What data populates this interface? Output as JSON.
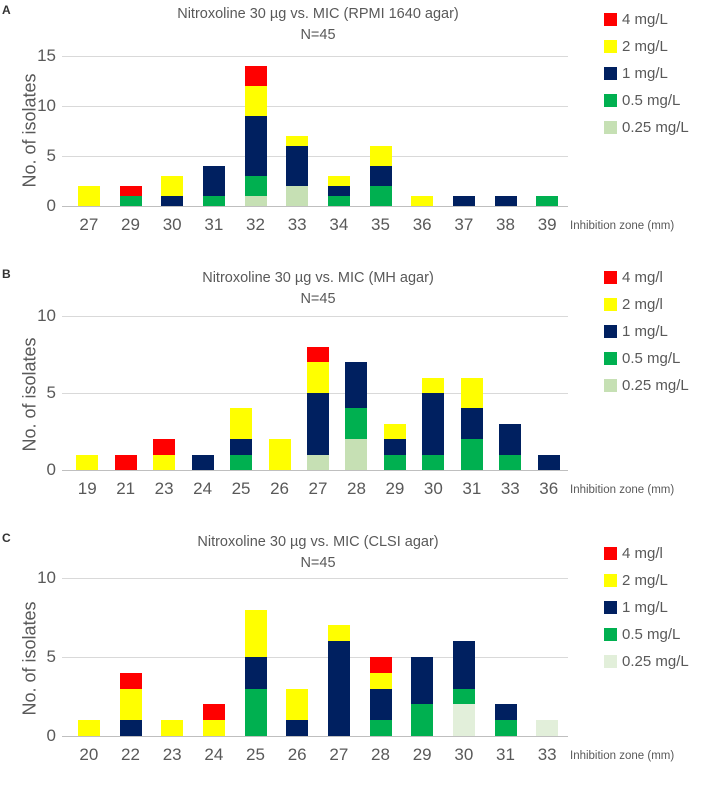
{
  "figure": {
    "text_color": "#595959",
    "grid_color": "#d9d9d9",
    "axis_color": "#bfbfbf"
  },
  "chart_data": [
    {
      "type": "bar",
      "stacked": true,
      "panel_label": "A",
      "title": "Nitroxoline 30 µg vs. MIC (RPMI 1640 agar)",
      "subtitle": "N=45",
      "ylabel": "No. of isolates",
      "xlabel": "Inhibition zone (mm)",
      "ylim": [
        0,
        15
      ],
      "yticks": [
        0,
        5,
        10,
        15
      ],
      "grid": true,
      "legend_position": "right",
      "categories": [
        "27",
        "29",
        "30",
        "31",
        "32",
        "33",
        "34",
        "35",
        "36",
        "37",
        "38",
        "39"
      ],
      "series": [
        {
          "name": "4 mg/L",
          "color": "#FF0000",
          "values": [
            0,
            1,
            0,
            0,
            2,
            0,
            0,
            0,
            0,
            0,
            0,
            0
          ]
        },
        {
          "name": "2 mg/L",
          "color": "#FFFF00",
          "values": [
            2,
            0,
            2,
            0,
            3,
            1,
            1,
            2,
            1,
            0,
            0,
            0
          ]
        },
        {
          "name": "1 mg/L",
          "color": "#002060",
          "values": [
            0,
            0,
            1,
            3,
            6,
            4,
            1,
            2,
            0,
            1,
            1,
            0
          ]
        },
        {
          "name": "0.5 mg/L",
          "color": "#00B050",
          "values": [
            0,
            1,
            0,
            1,
            2,
            0,
            1,
            2,
            0,
            0,
            0,
            1
          ]
        },
        {
          "name": "0.25 mg/L",
          "color": "#C6E0B4",
          "values": [
            0,
            0,
            0,
            0,
            1,
            2,
            0,
            0,
            0,
            0,
            0,
            0
          ]
        }
      ]
    },
    {
      "type": "bar",
      "stacked": true,
      "panel_label": "B",
      "title": "Nitroxoline 30 µg vs. MIC (MH agar)",
      "subtitle": "N=45",
      "ylabel": "No. of isolates",
      "xlabel": "Inhibition zone (mm)",
      "ylim": [
        0,
        10
      ],
      "yticks": [
        0,
        5,
        10
      ],
      "grid": true,
      "legend_position": "right",
      "categories": [
        "19",
        "21",
        "23",
        "24",
        "25",
        "26",
        "27",
        "28",
        "29",
        "30",
        "31",
        "33",
        "36"
      ],
      "series": [
        {
          "name": "4 mg/l",
          "color": "#FF0000",
          "values": [
            0,
            1,
            1,
            0,
            0,
            0,
            1,
            0,
            0,
            0,
            0,
            0,
            0
          ]
        },
        {
          "name": "2 mg/l",
          "color": "#FFFF00",
          "values": [
            1,
            0,
            1,
            0,
            2,
            2,
            2,
            0,
            1,
            1,
            2,
            0,
            0
          ]
        },
        {
          "name": "1 mg/L",
          "color": "#002060",
          "values": [
            0,
            0,
            0,
            1,
            1,
            0,
            4,
            3,
            1,
            4,
            2,
            2,
            1
          ]
        },
        {
          "name": "0.5 mg/L",
          "color": "#00B050",
          "values": [
            0,
            0,
            0,
            0,
            1,
            0,
            0,
            2,
            1,
            1,
            2,
            1,
            0
          ]
        },
        {
          "name": "0.25 mg/L",
          "color": "#C6E0B4",
          "values": [
            0,
            0,
            0,
            0,
            0,
            0,
            1,
            2,
            0,
            0,
            0,
            0,
            0
          ]
        }
      ]
    },
    {
      "type": "bar",
      "stacked": true,
      "panel_label": "C",
      "title": "Nitroxoline 30 µg vs. MIC (CLSI agar)",
      "subtitle": "N=45",
      "ylabel": "No. of isolates",
      "xlabel": "Inhibition zone (mm)",
      "ylim": [
        0,
        10
      ],
      "yticks": [
        0,
        5,
        10
      ],
      "grid": true,
      "legend_position": "right",
      "categories": [
        "20",
        "22",
        "23",
        "24",
        "25",
        "26",
        "27",
        "28",
        "29",
        "30",
        "31",
        "33"
      ],
      "series": [
        {
          "name": "4 mg/l",
          "color": "#FF0000",
          "values": [
            0,
            1,
            0,
            1,
            0,
            0,
            0,
            1,
            0,
            0,
            0,
            0
          ]
        },
        {
          "name": "2 mg/L",
          "color": "#FFFF00",
          "values": [
            1,
            2,
            1,
            1,
            3,
            2,
            1,
            1,
            0,
            0,
            0,
            0
          ]
        },
        {
          "name": "1 mg/L",
          "color": "#002060",
          "values": [
            0,
            1,
            0,
            0,
            2,
            1,
            6,
            2,
            3,
            3,
            1,
            0
          ]
        },
        {
          "name": "0.5 mg/L",
          "color": "#00B050",
          "values": [
            0,
            0,
            0,
            0,
            3,
            0,
            0,
            1,
            2,
            1,
            1,
            0
          ]
        },
        {
          "name": "0.25 mg/L",
          "color": "#E2EFDA",
          "values": [
            0,
            0,
            0,
            0,
            0,
            0,
            0,
            0,
            0,
            2,
            0,
            1
          ]
        }
      ]
    }
  ]
}
